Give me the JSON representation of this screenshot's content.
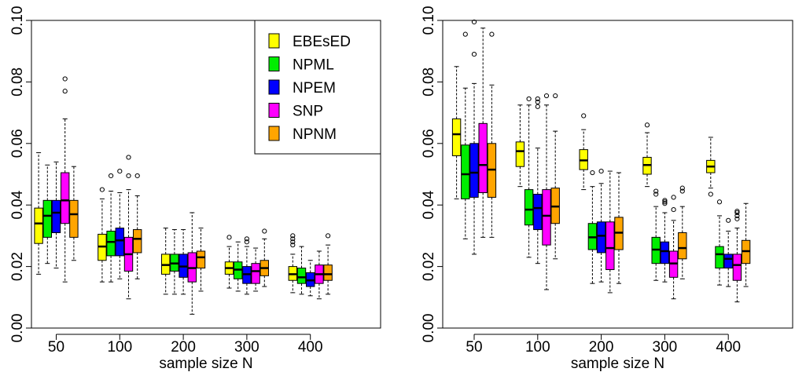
{
  "chart_data": [
    {
      "type": "boxplot",
      "title": "",
      "xlabel": "sample size N",
      "ylabel": "",
      "ylim": [
        0.0,
        0.1
      ],
      "yticks": [
        "0.00",
        "0.02",
        "0.04",
        "0.06",
        "0.08",
        "0.10"
      ],
      "categories": [
        "50",
        "100",
        "200",
        "300",
        "400"
      ],
      "legend": {
        "placement": "top-right",
        "entries": [
          "EBEsED",
          "NPML",
          "NPEM",
          "SNP",
          "NPNM"
        ]
      },
      "series": [
        {
          "name": "EBEsED",
          "color": "#ffff00",
          "boxes": [
            {
              "min": 0.0175,
              "q1": 0.0275,
              "median": 0.034,
              "q3": 0.039,
              "max": 0.057,
              "outliers": []
            },
            {
              "min": 0.015,
              "q1": 0.022,
              "median": 0.0265,
              "q3": 0.0305,
              "max": 0.042,
              "outliers": [
                0.045
              ]
            },
            {
              "min": 0.011,
              "q1": 0.0175,
              "median": 0.0205,
              "q3": 0.024,
              "max": 0.0325,
              "outliers": []
            },
            {
              "min": 0.013,
              "q1": 0.0175,
              "median": 0.0195,
              "q3": 0.0215,
              "max": 0.0265,
              "outliers": [
                0.0295
              ]
            },
            {
              "min": 0.0115,
              "q1": 0.0155,
              "median": 0.0175,
              "q3": 0.02,
              "max": 0.024,
              "outliers": [
                0.027,
                0.028,
                0.029,
                0.03
              ]
            }
          ]
        },
        {
          "name": "NPML",
          "color": "#00ee00",
          "boxes": [
            {
              "min": 0.021,
              "q1": 0.0295,
              "median": 0.0365,
              "q3": 0.0415,
              "max": 0.053,
              "outliers": []
            },
            {
              "min": 0.015,
              "q1": 0.0235,
              "median": 0.028,
              "q3": 0.0315,
              "max": 0.0445,
              "outliers": [
                0.0495
              ]
            },
            {
              "min": 0.011,
              "q1": 0.0185,
              "median": 0.021,
              "q3": 0.024,
              "max": 0.032,
              "outliers": []
            },
            {
              "min": 0.012,
              "q1": 0.016,
              "median": 0.019,
              "q3": 0.0215,
              "max": 0.028,
              "outliers": []
            },
            {
              "min": 0.011,
              "q1": 0.0145,
              "median": 0.0165,
              "q3": 0.0195,
              "max": 0.0265,
              "outliers": []
            }
          ]
        },
        {
          "name": "NPEM",
          "color": "#0000ff",
          "boxes": [
            {
              "min": 0.0195,
              "q1": 0.031,
              "median": 0.0375,
              "q3": 0.0415,
              "max": 0.054,
              "outliers": []
            },
            {
              "min": 0.016,
              "q1": 0.0235,
              "median": 0.0285,
              "q3": 0.0325,
              "max": 0.044,
              "outliers": [
                0.051
              ]
            },
            {
              "min": 0.011,
              "q1": 0.0165,
              "median": 0.02,
              "q3": 0.024,
              "max": 0.032,
              "outliers": []
            },
            {
              "min": 0.011,
              "q1": 0.0145,
              "median": 0.0175,
              "q3": 0.02,
              "max": 0.0265,
              "outliers": [
                0.028,
                0.029
              ]
            },
            {
              "min": 0.0105,
              "q1": 0.0135,
              "median": 0.0155,
              "q3": 0.018,
              "max": 0.022,
              "outliers": []
            }
          ]
        },
        {
          "name": "SNP",
          "color": "#ff00ff",
          "boxes": [
            {
              "min": 0.015,
              "q1": 0.034,
              "median": 0.0415,
              "q3": 0.0505,
              "max": 0.068,
              "outliers": [
                0.077,
                0.081
              ]
            },
            {
              "min": 0.0095,
              "q1": 0.0185,
              "median": 0.024,
              "q3": 0.0295,
              "max": 0.045,
              "outliers": [
                0.0495,
                0.0555
              ]
            },
            {
              "min": 0.0045,
              "q1": 0.015,
              "median": 0.0195,
              "q3": 0.0245,
              "max": 0.0375,
              "outliers": []
            },
            {
              "min": 0.012,
              "q1": 0.0145,
              "median": 0.0185,
              "q3": 0.021,
              "max": 0.026,
              "outliers": []
            },
            {
              "min": 0.0095,
              "q1": 0.0145,
              "median": 0.0175,
              "q3": 0.0205,
              "max": 0.025,
              "outliers": []
            }
          ]
        },
        {
          "name": "NPNM",
          "color": "#ffa500",
          "boxes": [
            {
              "min": 0.022,
              "q1": 0.0295,
              "median": 0.037,
              "q3": 0.0415,
              "max": 0.0525,
              "outliers": []
            },
            {
              "min": 0.016,
              "q1": 0.0245,
              "median": 0.029,
              "q3": 0.032,
              "max": 0.043,
              "outliers": [
                0.0495
              ]
            },
            {
              "min": 0.012,
              "q1": 0.0195,
              "median": 0.023,
              "q3": 0.025,
              "max": 0.0325,
              "outliers": []
            },
            {
              "min": 0.0135,
              "q1": 0.017,
              "median": 0.0195,
              "q3": 0.022,
              "max": 0.029,
              "outliers": [
                0.0315
              ]
            },
            {
              "min": 0.011,
              "q1": 0.0155,
              "median": 0.0175,
              "q3": 0.0205,
              "max": 0.027,
              "outliers": [
                0.03
              ]
            }
          ]
        }
      ]
    },
    {
      "type": "boxplot",
      "title": "",
      "xlabel": "sample size N",
      "ylabel": "",
      "ylim": [
        0.0,
        0.1
      ],
      "yticks": [
        "0.00",
        "0.02",
        "0.04",
        "0.06",
        "0.08",
        "0.10"
      ],
      "categories": [
        "50",
        "100",
        "200",
        "300",
        "400"
      ],
      "series": [
        {
          "name": "EBEsED",
          "color": "#ffff00",
          "boxes": [
            {
              "min": 0.042,
              "q1": 0.056,
              "median": 0.063,
              "q3": 0.068,
              "max": 0.085,
              "outliers": []
            },
            {
              "min": 0.046,
              "q1": 0.0525,
              "median": 0.0575,
              "q3": 0.0605,
              "max": 0.0725,
              "outliers": []
            },
            {
              "min": 0.045,
              "q1": 0.0515,
              "median": 0.0545,
              "q3": 0.058,
              "max": 0.0645,
              "outliers": [
                0.069
              ]
            },
            {
              "min": 0.046,
              "q1": 0.05,
              "median": 0.053,
              "q3": 0.0555,
              "max": 0.0635,
              "outliers": [
                0.066
              ]
            },
            {
              "min": 0.0455,
              "q1": 0.0505,
              "median": 0.0525,
              "q3": 0.0545,
              "max": 0.062,
              "outliers": [
                0.0435
              ]
            }
          ]
        },
        {
          "name": "NPML",
          "color": "#00ee00",
          "boxes": [
            {
              "min": 0.029,
              "q1": 0.042,
              "median": 0.05,
              "q3": 0.0595,
              "max": 0.078,
              "outliers": [
                0.0955
              ]
            },
            {
              "min": 0.023,
              "q1": 0.0335,
              "median": 0.0385,
              "q3": 0.045,
              "max": 0.0725,
              "outliers": [
                0.0745
              ]
            },
            {
              "min": 0.0145,
              "q1": 0.0255,
              "median": 0.0295,
              "q3": 0.034,
              "max": 0.046,
              "outliers": [
                0.0505
              ]
            },
            {
              "min": 0.0155,
              "q1": 0.021,
              "median": 0.0255,
              "q3": 0.0295,
              "max": 0.0395,
              "outliers": [
                0.0435,
                0.0445
              ]
            },
            {
              "min": 0.014,
              "q1": 0.0195,
              "median": 0.024,
              "q3": 0.0265,
              "max": 0.0365,
              "outliers": [
                0.041
              ]
            }
          ]
        },
        {
          "name": "NPEM",
          "color": "#0000ff",
          "boxes": [
            {
              "min": 0.024,
              "q1": 0.0425,
              "median": 0.0505,
              "q3": 0.06,
              "max": 0.0795,
              "outliers": [
                0.089,
                0.0995
              ]
            },
            {
              "min": 0.021,
              "q1": 0.032,
              "median": 0.039,
              "q3": 0.0435,
              "max": 0.0585,
              "outliers": [
                0.072,
                0.0735,
                0.0745
              ]
            },
            {
              "min": 0.015,
              "q1": 0.0245,
              "median": 0.03,
              "q3": 0.0345,
              "max": 0.047,
              "outliers": [
                0.051
              ]
            },
            {
              "min": 0.015,
              "q1": 0.021,
              "median": 0.025,
              "q3": 0.028,
              "max": 0.0375,
              "outliers": [
                0.0405,
                0.041,
                0.0415
              ]
            },
            {
              "min": 0.0135,
              "q1": 0.0195,
              "median": 0.0225,
              "q3": 0.024,
              "max": 0.0315,
              "outliers": [
                0.035
              ]
            }
          ]
        },
        {
          "name": "SNP",
          "color": "#ff00ff",
          "boxes": [
            {
              "min": 0.0295,
              "q1": 0.044,
              "median": 0.053,
              "q3": 0.0665,
              "max": 0.0975,
              "outliers": []
            },
            {
              "min": 0.0125,
              "q1": 0.027,
              "median": 0.0365,
              "q3": 0.045,
              "max": 0.0725,
              "outliers": [
                0.0755
              ]
            },
            {
              "min": 0.0115,
              "q1": 0.019,
              "median": 0.026,
              "q3": 0.0345,
              "max": 0.051,
              "outliers": []
            },
            {
              "min": 0.0095,
              "q1": 0.0165,
              "median": 0.021,
              "q3": 0.025,
              "max": 0.035,
              "outliers": [
                0.0385,
                0.0425
              ]
            },
            {
              "min": 0.0085,
              "q1": 0.0155,
              "median": 0.0205,
              "q3": 0.024,
              "max": 0.0325,
              "outliers": [
                0.0355,
                0.0365,
                0.0375,
                0.038
              ]
            }
          ]
        },
        {
          "name": "NPNM",
          "color": "#ffa500",
          "boxes": [
            {
              "min": 0.0295,
              "q1": 0.0425,
              "median": 0.0515,
              "q3": 0.06,
              "max": 0.079,
              "outliers": [
                0.0955
              ]
            },
            {
              "min": 0.0225,
              "q1": 0.034,
              "median": 0.0395,
              "q3": 0.0455,
              "max": 0.064,
              "outliers": [
                0.0755
              ]
            },
            {
              "min": 0.0145,
              "q1": 0.0255,
              "median": 0.031,
              "q3": 0.036,
              "max": 0.0505,
              "outliers": []
            },
            {
              "min": 0.016,
              "q1": 0.0225,
              "median": 0.026,
              "q3": 0.031,
              "max": 0.0395,
              "outliers": [
                0.0445,
                0.0455
              ]
            },
            {
              "min": 0.0135,
              "q1": 0.021,
              "median": 0.025,
              "q3": 0.0285,
              "max": 0.0405,
              "outliers": []
            }
          ]
        }
      ]
    }
  ]
}
